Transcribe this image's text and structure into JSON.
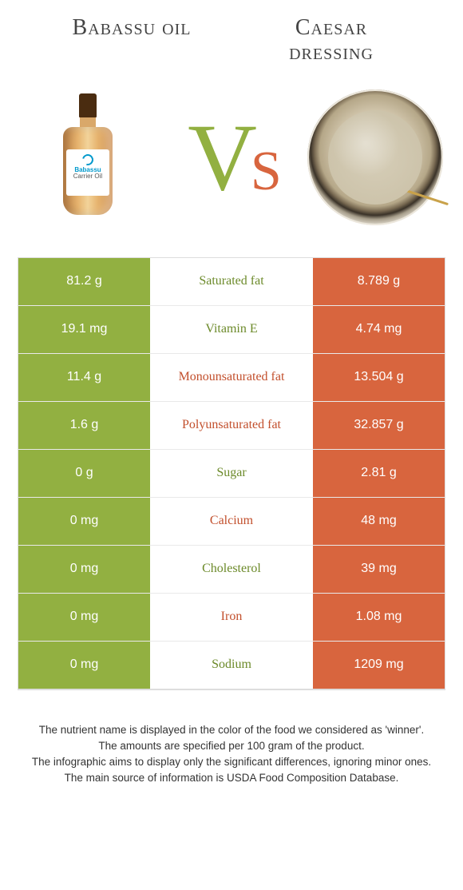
{
  "header": {
    "left_title": "Babassu oil",
    "right_title_line1": "Caesar",
    "right_title_line2": "dressing"
  },
  "vs": {
    "v": "V",
    "s": "s"
  },
  "bottle_label": {
    "line1": "Babassu",
    "line2": "Carrier Oil"
  },
  "colors": {
    "left": "#92b041",
    "right": "#d8653e",
    "left_text": "#6c8a2a",
    "right_text": "#c24f2c",
    "background": "#ffffff"
  },
  "rows": [
    {
      "left": "81.2 g",
      "label": "Saturated fat",
      "right": "8.789 g",
      "winner": "left"
    },
    {
      "left": "19.1 mg",
      "label": "Vitamin E",
      "right": "4.74 mg",
      "winner": "left"
    },
    {
      "left": "11.4 g",
      "label": "Monounsaturated fat",
      "right": "13.504 g",
      "winner": "right"
    },
    {
      "left": "1.6 g",
      "label": "Polyunsaturated fat",
      "right": "32.857 g",
      "winner": "right"
    },
    {
      "left": "0 g",
      "label": "Sugar",
      "right": "2.81 g",
      "winner": "left"
    },
    {
      "left": "0 mg",
      "label": "Calcium",
      "right": "48 mg",
      "winner": "right"
    },
    {
      "left": "0 mg",
      "label": "Cholesterol",
      "right": "39 mg",
      "winner": "left"
    },
    {
      "left": "0 mg",
      "label": "Iron",
      "right": "1.08 mg",
      "winner": "right"
    },
    {
      "left": "0 mg",
      "label": "Sodium",
      "right": "1209 mg",
      "winner": "left"
    }
  ],
  "footnotes": {
    "l1": "The nutrient name is displayed in the color of the food we considered as 'winner'.",
    "l2": "The amounts are specified per 100 gram of the product.",
    "l3": "The infographic aims to display only the significant differences, ignoring minor ones.",
    "l4": "The main source of information is USDA Food Composition Database."
  }
}
